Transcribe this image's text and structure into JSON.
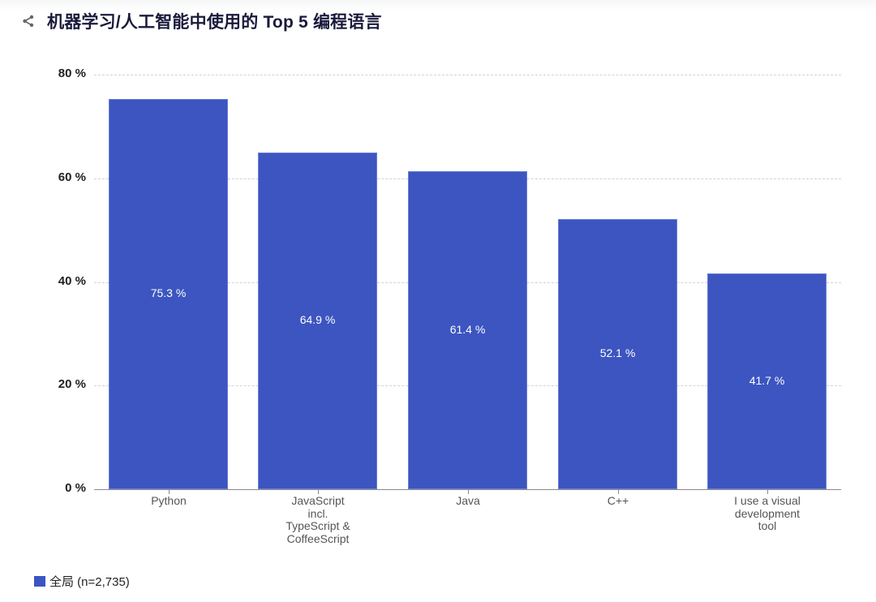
{
  "header": {
    "title": "机器学习/人工智能中使用的 Top 5 编程语言",
    "share_icon": "share-icon"
  },
  "colors": {
    "bar": "#3c55c0",
    "title": "#1a1a3c",
    "grid": "#cfd3d8"
  },
  "chart_data": {
    "type": "bar",
    "title": "机器学习/人工智能中使用的 Top 5 编程语言",
    "categories": [
      "Python",
      "JavaScript incl. TypeScript & CoffeeScript",
      "Java",
      "C++",
      "I use a visual development tool"
    ],
    "category_labels": [
      "Python",
      "JavaScript\nincl.\nTypeScript &\nCoffeeScript",
      "Java",
      "C++",
      "I use a visual\ndevelopment\ntool"
    ],
    "series": [
      {
        "name": "全局 (n=2,735)",
        "values": [
          75.3,
          64.9,
          61.4,
          52.1,
          41.7
        ]
      }
    ],
    "value_labels": [
      "75.3 %",
      "64.9 %",
      "61.4 %",
      "52.1 %",
      "41.7 %"
    ],
    "xlabel": "",
    "ylabel": "",
    "ylim": [
      0,
      80
    ],
    "yticks": [
      0,
      20,
      40,
      60,
      80
    ],
    "ytick_labels": [
      "0 %",
      "20 %",
      "40 %",
      "60 %",
      "80 %"
    ],
    "grid": true,
    "legend_position": "bottom-left"
  },
  "legend": {
    "items": [
      {
        "label": "全局 (n=2,735)",
        "color": "#3c55c0"
      }
    ]
  }
}
